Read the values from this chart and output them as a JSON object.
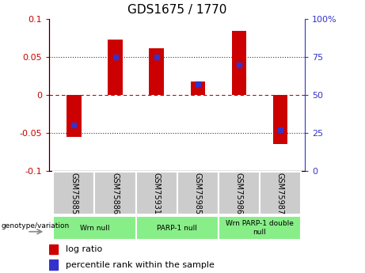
{
  "title": "GDS1675 / 1770",
  "samples": [
    "GSM75885",
    "GSM75886",
    "GSM75931",
    "GSM75985",
    "GSM75986",
    "GSM75987"
  ],
  "log_ratio": [
    -0.055,
    0.073,
    0.062,
    0.018,
    0.085,
    -0.065
  ],
  "percentile_rank": [
    30,
    75,
    75,
    57,
    70,
    27
  ],
  "ylim_left": [
    -0.1,
    0.1
  ],
  "ylim_right": [
    0,
    100
  ],
  "yticks_left": [
    -0.1,
    -0.05,
    0,
    0.05,
    0.1
  ],
  "yticks_right": [
    0,
    25,
    50,
    75,
    100
  ],
  "ytick_labels_left": [
    "-0.1",
    "-0.05",
    "0",
    "0.05",
    "0.1"
  ],
  "ytick_labels_right": [
    "0",
    "25",
    "50",
    "75",
    "100%"
  ],
  "bar_color": "#cc0000",
  "dot_color": "#3333cc",
  "hline_color": "#cc0000",
  "dotted_color": "#333333",
  "groups": [
    {
      "label": "Wrn null",
      "start": 0,
      "end": 2
    },
    {
      "label": "PARP-1 null",
      "start": 2,
      "end": 4
    },
    {
      "label": "Wrn PARP-1 double\nnull",
      "start": 4,
      "end": 6
    }
  ],
  "group_color": "#88ee88",
  "sample_box_color": "#cccccc",
  "legend_log_ratio_label": "log ratio",
  "legend_percentile_label": "percentile rank within the sample",
  "genotype_label": "genotype/variation",
  "background_color": "#ffffff",
  "bar_width": 0.35
}
